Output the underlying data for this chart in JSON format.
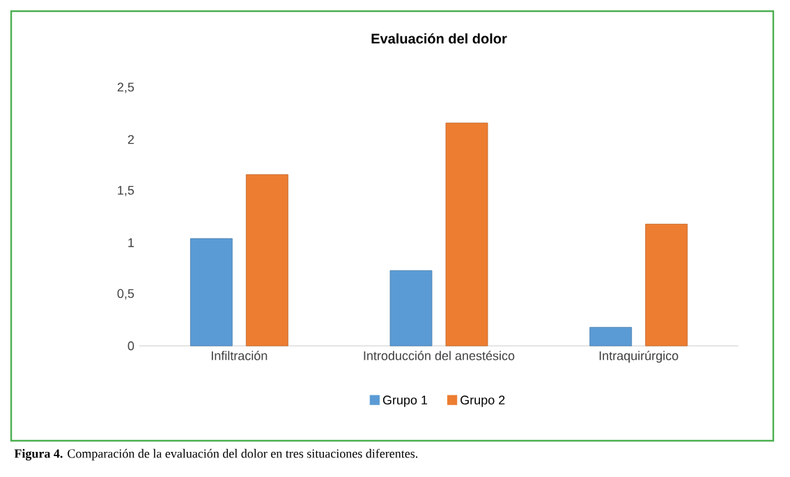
{
  "chart_data": {
    "type": "bar",
    "title": "Evaluación del dolor",
    "categories": [
      "Infiltración",
      "Introducción del anestésico",
      "Intraquirúrgico"
    ],
    "series": [
      {
        "name": "Grupo 1",
        "color": "#5b9bd5",
        "values": [
          1.04,
          0.73,
          0.18
        ]
      },
      {
        "name": "Grupo 2",
        "color": "#ed7d31",
        "values": [
          1.66,
          2.16,
          1.18
        ]
      }
    ],
    "ylim": [
      0,
      2.5
    ],
    "yticks": [
      0,
      {
        "value": 0.5,
        "label": "0,5"
      },
      1,
      {
        "value": 1.5,
        "label": "1,5"
      },
      2,
      {
        "value": 2.5,
        "label": "2,5"
      }
    ],
    "grid": false,
    "legend": "bottom",
    "annotations": [
      "**Figura 4.** Comparación de la evaluación del dolor en tres situaciones diferentes."
    ]
  }
}
